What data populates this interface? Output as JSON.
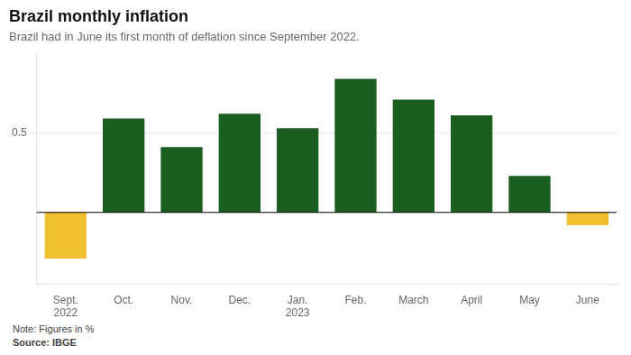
{
  "chart_data": {
    "type": "bar",
    "title": "Brazil monthly inflation",
    "subtitle": "Brazil had in June its first month of deflation since September 2022.",
    "annotations": [
      "Note: Figures in %",
      "Source: IBGE"
    ],
    "categories": [
      "Sept.\n2022",
      "Oct.",
      "Nov.",
      "Dec.",
      "Jan.\n2023",
      "Feb.",
      "March",
      "April",
      "May",
      "June"
    ],
    "values": [
      -0.29,
      0.59,
      0.41,
      0.62,
      0.53,
      0.84,
      0.71,
      0.61,
      0.23,
      -0.08
    ],
    "colors": [
      "#f0c030",
      "#1a5e20",
      "#1a5e20",
      "#1a5e20",
      "#1a5e20",
      "#1a5e20",
      "#1a5e20",
      "#1a5e20",
      "#1a5e20",
      "#f0c030"
    ],
    "ylim": [
      -0.45,
      1.0
    ],
    "yticks": [
      0.5
    ],
    "grid": true,
    "legend": false
  }
}
